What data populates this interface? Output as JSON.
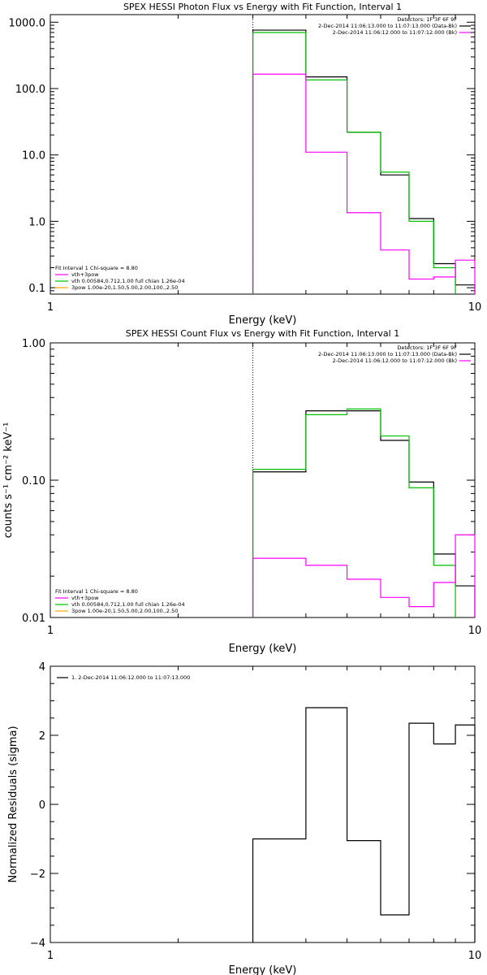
{
  "chart_data": [
    {
      "type": "line",
      "title": "SPEX HESSI Photon Flux vs Energy with Fit Function, Interval 1",
      "xlabel": "Energy (keV)",
      "ylabel": "",
      "xscale": "log",
      "yscale": "log",
      "xlim": [
        1,
        10
      ],
      "ylim": [
        0.08,
        1300
      ],
      "xticks": [
        {
          "v": 1,
          "label": "1"
        },
        {
          "v": 10,
          "label": "10"
        }
      ],
      "yticks": [
        {
          "v": 0.1,
          "label": "0.1"
        },
        {
          "v": 1,
          "label": "1.0"
        },
        {
          "v": 10,
          "label": "10.0"
        },
        {
          "v": 100,
          "label": "100.0"
        },
        {
          "v": 1000,
          "label": "1000.0"
        }
      ],
      "vline": 3.0,
      "vline_color": "#00c000",
      "legend_top_right": [
        {
          "text": "Detectors: 1F 3F 6F 9F",
          "color": ""
        },
        {
          "text": "2-Dec-2014 11:06:13.000 to 11:07:13.000 (Data-Bk)",
          "color": "#000000"
        },
        {
          "text": "2-Dec-2014 11:06:12.000 to 11:07:12.000 (Bk)",
          "color": "#ff00ff"
        }
      ],
      "legend_bottom_left": [
        {
          "text": "Fit Interval  1    Chi-square = 8.80",
          "color": ""
        },
        {
          "text": "vth+3pow",
          "color": "#ff00ff"
        },
        {
          "text": "vth 0.00584,0.712,1.00  full chian 1.26e-04",
          "color": "#00c000"
        },
        {
          "text": "3pow 1.00e-20,1.50,5.00,2.00,100.,2.50",
          "color": "#ffa500"
        }
      ],
      "series": [
        {
          "color": "#000000",
          "edges": [
            3,
            4,
            5,
            6,
            7,
            8,
            9,
            10
          ],
          "values": [
            760,
            150,
            22,
            5,
            1.1,
            0.23,
            0.11
          ]
        },
        {
          "color": "#00c000",
          "edges": [
            3,
            4,
            5,
            6,
            7,
            8,
            9
          ],
          "values": [
            700,
            135,
            22,
            5.5,
            1.0,
            0.2
          ]
        },
        {
          "color": "#ff00ff",
          "edges": [
            3,
            4,
            5,
            6,
            7,
            8,
            9,
            10
          ],
          "values": [
            165,
            11,
            1.35,
            0.37,
            0.135,
            0.145,
            0.26
          ]
        }
      ]
    },
    {
      "type": "line",
      "title": "SPEX HESSI Count Flux vs Energy with Fit Function, Interval 1",
      "xlabel": "Energy (keV)",
      "ylabel": "counts s⁻¹ cm⁻² keV⁻¹",
      "xscale": "log",
      "yscale": "log",
      "xlim": [
        1,
        10
      ],
      "ylim": [
        0.01,
        1.0
      ],
      "xticks": [
        {
          "v": 1,
          "label": "1"
        },
        {
          "v": 10,
          "label": "10"
        }
      ],
      "yticks": [
        {
          "v": 0.01,
          "label": "0.01"
        },
        {
          "v": 0.1,
          "label": "0.10"
        },
        {
          "v": 1,
          "label": "1.00"
        }
      ],
      "vline": 3.0,
      "vline_color": "#000000",
      "legend_top_right": [
        {
          "text": "Detectors: 1F 3F 6F 9F",
          "color": ""
        },
        {
          "text": "2-Dec-2014 11:06:13.000 to 11:07:13.000 (Data-Bk)",
          "color": "#000000"
        },
        {
          "text": "2-Dec-2014 11:06:12.000 to 11:07:12.000 (Bk)",
          "color": "#ff00ff"
        }
      ],
      "legend_bottom_left": [
        {
          "text": "Fit Interval  1    Chi-square = 8.80",
          "color": ""
        },
        {
          "text": "vth+3pow",
          "color": "#ff00ff"
        },
        {
          "text": "vth 0.00584,0.712,1.00  full chian 1.26e-04",
          "color": "#00c000"
        },
        {
          "text": "3pow 1.00e-20,1.50,5.00,2.00,100.,2.50",
          "color": "#ffa500"
        }
      ],
      "series": [
        {
          "color": "#000000",
          "edges": [
            3,
            4,
            5,
            6,
            7,
            8,
            9,
            10
          ],
          "values": [
            0.115,
            0.32,
            0.32,
            0.195,
            0.097,
            0.029,
            0.017
          ]
        },
        {
          "color": "#00c000",
          "edges": [
            3,
            4,
            5,
            6,
            7,
            8,
            9
          ],
          "values": [
            0.12,
            0.3,
            0.33,
            0.21,
            0.088,
            0.024
          ]
        },
        {
          "color": "#ff00ff",
          "edges": [
            3,
            4,
            5,
            6,
            7,
            8,
            9,
            10
          ],
          "values": [
            0.027,
            0.024,
            0.019,
            0.014,
            0.012,
            0.018,
            0.04
          ]
        }
      ]
    },
    {
      "type": "line",
      "title": "",
      "xlabel": "Energy (keV)",
      "ylabel": "Normalized Residuals (sigma)",
      "xscale": "log",
      "yscale": "linear",
      "xlim": [
        1,
        10
      ],
      "ylim": [
        -4,
        4
      ],
      "xticks": [
        {
          "v": 1,
          "label": "1"
        },
        {
          "v": 10,
          "label": "10"
        }
      ],
      "yticks": [
        {
          "v": -4,
          "label": "−4"
        },
        {
          "v": -2,
          "label": "−2"
        },
        {
          "v": 0,
          "label": "0"
        },
        {
          "v": 2,
          "label": "2"
        },
        {
          "v": 4,
          "label": "4"
        }
      ],
      "legend_top_left": [
        {
          "text": "1.  2-Dec-2014 11:06:12.000 to 11:07:13.000",
          "color": "#000000"
        }
      ],
      "series": [
        {
          "color": "#000000",
          "edges": [
            3,
            4,
            5,
            6,
            7,
            8,
            9,
            10
          ],
          "values": [
            -1.0,
            2.8,
            -1.05,
            -3.2,
            2.35,
            1.75,
            2.3
          ],
          "drop_to": -4
        }
      ]
    }
  ]
}
